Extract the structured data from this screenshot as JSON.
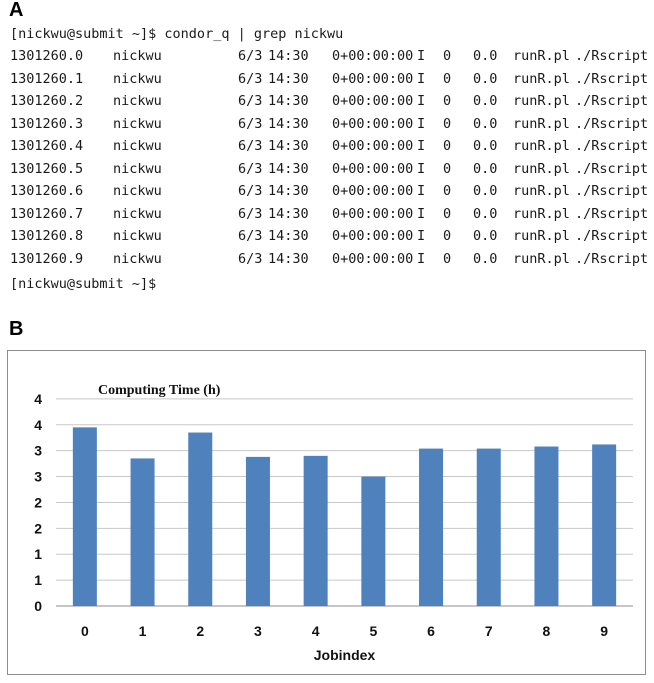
{
  "panel_a_label": "A",
  "panel_b_label": "B",
  "terminal": {
    "command_line": "[nickwu@submit ~]$ condor_q | grep nickwu",
    "rows": [
      [
        "1301260.0",
        "nickwu",
        "6/3",
        "14:30",
        "0+00:00:00",
        "I",
        "0",
        "0.0",
        "runR.pl",
        "./Rscript"
      ],
      [
        "1301260.1",
        "nickwu",
        "6/3",
        "14:30",
        "0+00:00:00",
        "I",
        "0",
        "0.0",
        "runR.pl",
        "./Rscript"
      ],
      [
        "1301260.2",
        "nickwu",
        "6/3",
        "14:30",
        "0+00:00:00",
        "I",
        "0",
        "0.0",
        "runR.pl",
        "./Rscript"
      ],
      [
        "1301260.3",
        "nickwu",
        "6/3",
        "14:30",
        "0+00:00:00",
        "I",
        "0",
        "0.0",
        "runR.pl",
        "./Rscript"
      ],
      [
        "1301260.4",
        "nickwu",
        "6/3",
        "14:30",
        "0+00:00:00",
        "I",
        "0",
        "0.0",
        "runR.pl",
        "./Rscript"
      ],
      [
        "1301260.5",
        "nickwu",
        "6/3",
        "14:30",
        "0+00:00:00",
        "I",
        "0",
        "0.0",
        "runR.pl",
        "./Rscript"
      ],
      [
        "1301260.6",
        "nickwu",
        "6/3",
        "14:30",
        "0+00:00:00",
        "I",
        "0",
        "0.0",
        "runR.pl",
        "./Rscript"
      ],
      [
        "1301260.7",
        "nickwu",
        "6/3",
        "14:30",
        "0+00:00:00",
        "I",
        "0",
        "0.0",
        "runR.pl",
        "./Rscript"
      ],
      [
        "1301260.8",
        "nickwu",
        "6/3",
        "14:30",
        "0+00:00:00",
        "I",
        "0",
        "0.0",
        "runR.pl",
        "./Rscript"
      ],
      [
        "1301260.9",
        "nickwu",
        "6/3",
        "14:30",
        "0+00:00:00",
        "I",
        "0",
        "0.0",
        "runR.pl",
        "./Rscript"
      ]
    ],
    "prompt_line": "[nickwu@submit ~]$"
  },
  "chart_data": {
    "type": "bar",
    "title": "Computing Time (h)",
    "xlabel": "Jobindex",
    "ylabel": "",
    "categories": [
      "0",
      "1",
      "2",
      "3",
      "4",
      "5",
      "6",
      "7",
      "8",
      "9"
    ],
    "values": [
      3.45,
      2.85,
      3.35,
      2.88,
      2.9,
      2.5,
      3.04,
      3.04,
      3.08,
      3.12
    ],
    "ylim": [
      0,
      4.5
    ],
    "ytick_values": [
      0,
      0.5,
      1,
      1.5,
      2,
      2.5,
      3,
      3.5,
      4
    ],
    "ytick_labels": [
      "0",
      "1",
      "1",
      "2",
      "2",
      "3",
      "3",
      "4",
      "4"
    ],
    "grid": true,
    "legend": "none",
    "bar_color": "#4f81bd",
    "grid_color": "#c8c8c8"
  }
}
